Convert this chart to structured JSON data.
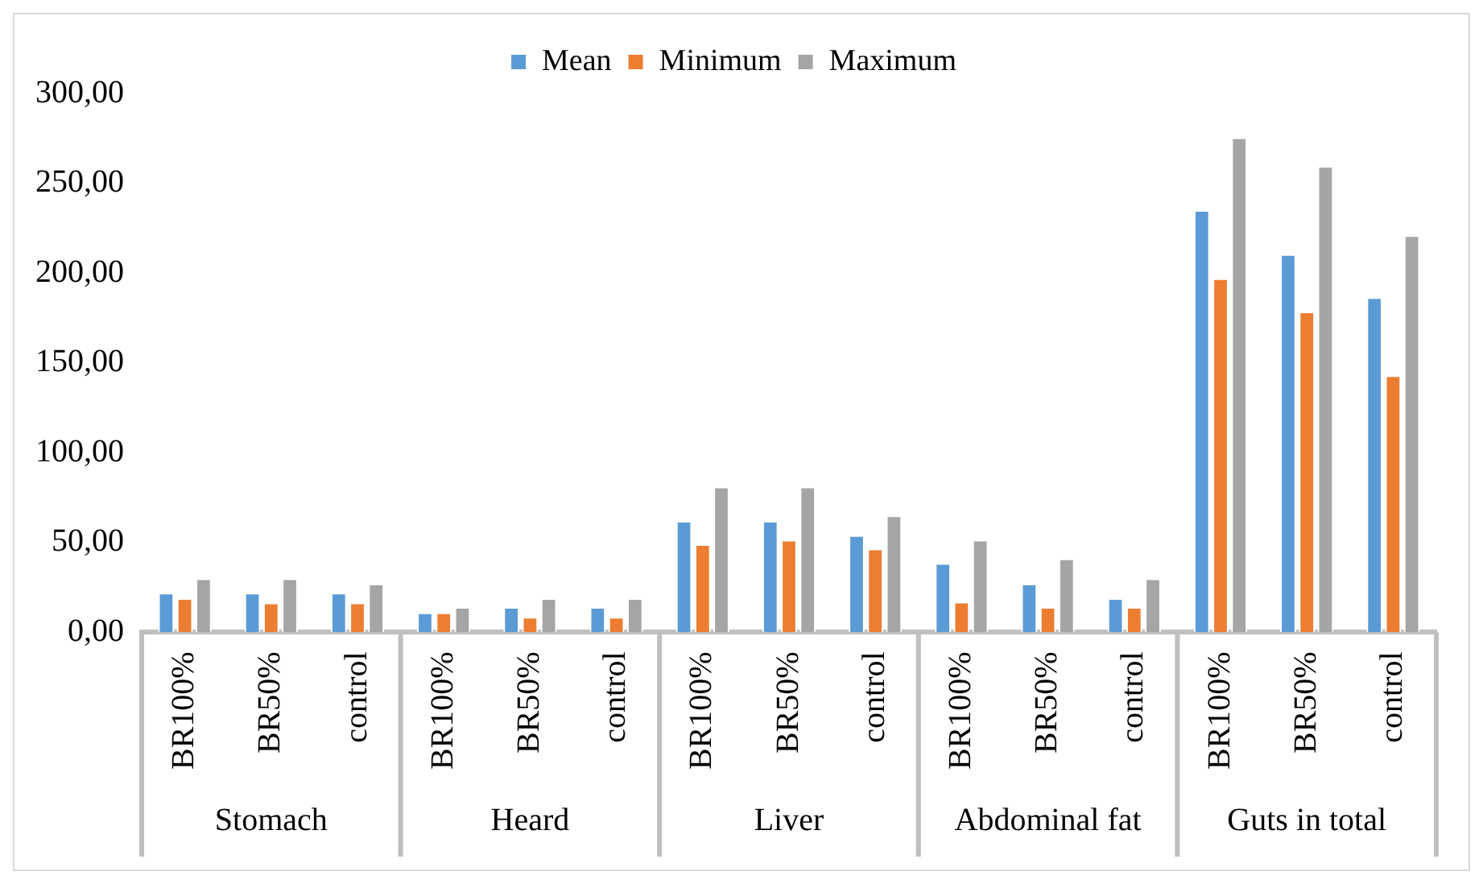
{
  "chart_data": {
    "type": "bar",
    "categories": [
      "BR100%",
      "BR50%",
      "control",
      "BR100%",
      "BR50%",
      "control",
      "BR100%",
      "BR50%",
      "control",
      "BR100%",
      "BR50%",
      "control",
      "BR100%",
      "BR50%",
      "control"
    ],
    "series": [
      {
        "name": "Mean",
        "color": "#5b9bd5",
        "values": [
          22,
          22,
          22,
          11,
          14,
          14,
          62,
          62,
          54,
          38.5,
          27,
          19,
          235,
          210.5,
          186.5
        ]
      },
      {
        "name": "Minimum",
        "color": "#ed7d31",
        "values": [
          19,
          16.5,
          16.5,
          11,
          8.5,
          8.5,
          49,
          51.5,
          46.5,
          17,
          14,
          14,
          197,
          178.5,
          143
        ]
      },
      {
        "name": "Maximum",
        "color": "#a5a5a5",
        "values": [
          30,
          30,
          27,
          14,
          19,
          19,
          81,
          81,
          65,
          51.5,
          41,
          30,
          275.5,
          259.5,
          221
        ]
      }
    ],
    "annotations": [
      "Stomach",
      "Heard",
      "Liver",
      "Abdominal fat",
      "Guts in total"
    ],
    "ylim": [
      0,
      300
    ],
    "yticks": [
      {
        "value": 0,
        "label": "0,00"
      },
      {
        "value": 50,
        "label": "50,00"
      },
      {
        "value": 100,
        "label": "100,00"
      },
      {
        "value": 150,
        "label": "150,00"
      },
      {
        "value": 200,
        "label": "200,00"
      },
      {
        "value": 250,
        "label": "250,00"
      },
      {
        "value": 300,
        "label": "300,00"
      }
    ],
    "grid": false,
    "legend": "top"
  }
}
